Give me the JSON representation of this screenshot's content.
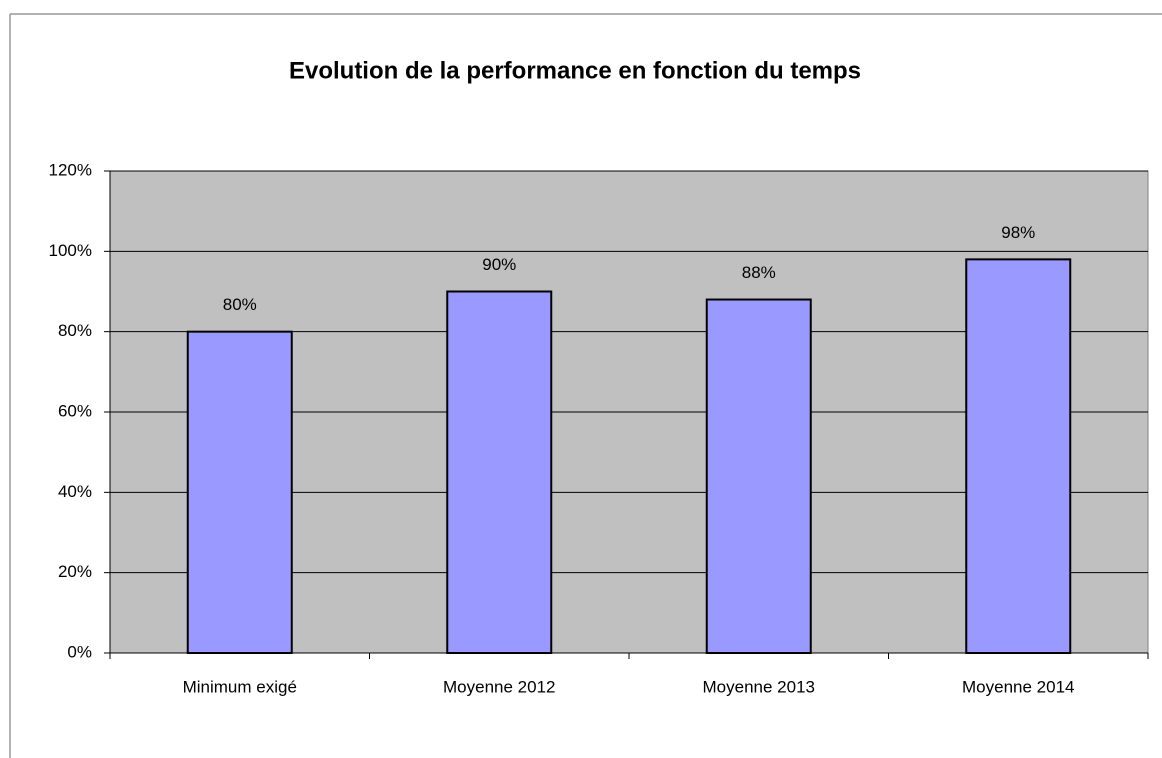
{
  "chart_data": {
    "type": "bar",
    "title": "Evolution de la performance en fonction du temps",
    "categories": [
      "Minimum exigé",
      "Moyenne 2012",
      "Moyenne 2013",
      "Moyenne 2014"
    ],
    "values": [
      80,
      90,
      88,
      98
    ],
    "value_labels": [
      "80%",
      "90%",
      "88%",
      "98%"
    ],
    "color": "#9999ff",
    "ylim": [
      0,
      120
    ],
    "yticks": [
      {
        "value": 0,
        "label": "0%"
      },
      {
        "value": 20,
        "label": "20%"
      },
      {
        "value": 40,
        "label": "40%"
      },
      {
        "value": 60,
        "label": "60%"
      },
      {
        "value": 80,
        "label": "80%"
      },
      {
        "value": 100,
        "label": "100%"
      },
      {
        "value": 120,
        "label": "120%"
      }
    ],
    "grid": true
  }
}
